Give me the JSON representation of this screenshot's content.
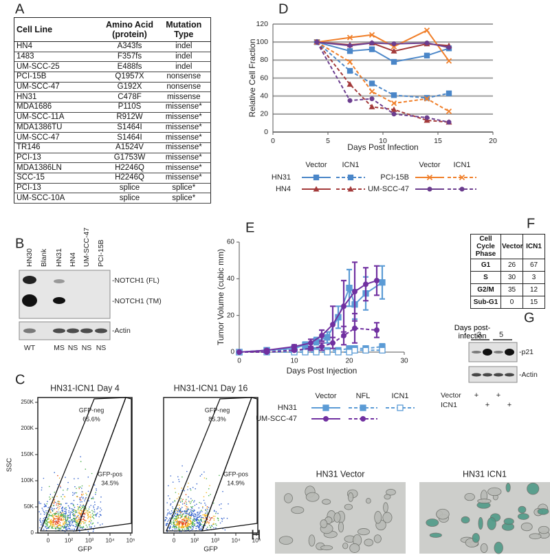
{
  "panels": {
    "A": {
      "label": "A",
      "table": {
        "header": [
          "Cell Line",
          "Amino Acid\n(protein)",
          "Mutation\nType"
        ],
        "rows": [
          [
            "HN4",
            "A343fs",
            "indel"
          ],
          [
            "1483",
            "F357fs",
            "indel"
          ],
          [
            "UM-SCC-25",
            "E488fs",
            "indel"
          ],
          [
            "PCI-15B",
            "Q1957X",
            "nonsense"
          ],
          [
            "UM-SCC-47",
            "G192X",
            "nonsense"
          ],
          [
            "HN31",
            "C478F",
            "missense"
          ],
          [
            "MDA1686",
            "P110S",
            "missense*"
          ],
          [
            "UM-SCC-11A",
            "R912W",
            "missense*"
          ],
          [
            "MDA1386TU",
            "S1464I",
            "missense*"
          ],
          [
            "UM-SCC-47",
            "S1464I",
            "missense*"
          ],
          [
            "TR146",
            "A1524V",
            "missense*"
          ],
          [
            "PCI-13",
            "G1753W",
            "missense*"
          ],
          [
            "MDA1386LN",
            "H2246Q",
            "missense*"
          ],
          [
            "SCC-15",
            "H2246Q",
            "missense*"
          ],
          [
            "PCI-13",
            "splice",
            "splice*"
          ],
          [
            "UM-SCC-10A",
            "splice",
            "splice*"
          ]
        ]
      }
    },
    "B": {
      "label": "B",
      "lanes": [
        "HN30",
        "Blank",
        "HN31",
        "HN4",
        "UM-SCC-47",
        "PCI-15B"
      ],
      "bands": [
        "-NOTCH1 (FL)",
        "-NOTCH1 (TM)",
        "-Actin"
      ],
      "status": [
        "WT",
        null,
        "MS",
        "NS",
        "NS",
        "NS"
      ]
    },
    "C": {
      "label": "C",
      "plots": [
        {
          "title": "HN31-ICN1 Day 4",
          "ylabel": "SSC",
          "xlabel": "GFP",
          "yticks": [
            0,
            {
              "value": 50000,
              "label": "50K"
            },
            {
              "value": 100000,
              "label": "100K"
            },
            {
              "value": 150000,
              "label": "150K"
            },
            {
              "value": 200000,
              "label": "200K"
            },
            {
              "value": 250000,
              "label": "250K"
            }
          ],
          "xticks": [
            0,
            {
              "value": 100,
              "label": "10²"
            },
            {
              "value": 1000,
              "label": "10³"
            },
            {
              "value": 10000,
              "label": "10⁴"
            },
            {
              "value": 100000,
              "label": "10⁵"
            }
          ],
          "neg_label": "GFP-neg",
          "neg_pct": "65.6%",
          "pos_label": "GFP-pos",
          "pos_pct": "34.5%"
        },
        {
          "title": "HN31-ICN1 Day 16",
          "xlabel": "GFP",
          "xticks": [
            0,
            {
              "value": 100,
              "label": "10²"
            },
            {
              "value": 1000,
              "label": "10³"
            },
            {
              "value": 10000,
              "label": "10⁴"
            },
            {
              "value": 100000,
              "label": "10⁵"
            }
          ],
          "neg_label": "GFP-neg",
          "neg_pct": "85.3%",
          "pos_label": "GFP-pos",
          "pos_pct": "14.9%"
        }
      ]
    },
    "D": {
      "label": "D"
    },
    "E": {
      "label": "E"
    },
    "F": {
      "label": "F",
      "table": {
        "header": [
          "Cell Cycle\nPhase",
          "Vector",
          "ICN1"
        ],
        "rows": [
          [
            "G1",
            "26",
            "67"
          ],
          [
            "S",
            "30",
            "3"
          ],
          [
            "G2/M",
            "35",
            "12"
          ],
          [
            "Sub-G1",
            "0",
            "15"
          ]
        ]
      }
    },
    "G": {
      "label": "G",
      "days_title": "Days post-\ninfection",
      "days": [
        "3",
        "5"
      ],
      "bands": [
        "-p21",
        "-Actin"
      ],
      "rows": [
        {
          "name": "Vector",
          "signs": [
            "+",
            null,
            "+",
            null
          ]
        },
        {
          "name": "ICN1",
          "signs": [
            null,
            "+",
            null,
            "+"
          ]
        }
      ]
    },
    "H": {
      "label": "H",
      "images": [
        "HN31 Vector",
        "HN31 ICN1"
      ]
    }
  },
  "chart_data": [
    {
      "type": "line",
      "ylabel": "Relative Cell Fraction",
      "xlabel": "Days Post Infection",
      "x": [
        4,
        7,
        9,
        11,
        14,
        16
      ],
      "xlim": [
        0,
        20
      ],
      "xticks": [
        0,
        5,
        10,
        15,
        20
      ],
      "ylim": [
        0,
        120
      ],
      "yticks": [
        0,
        20,
        40,
        60,
        80,
        100,
        120
      ],
      "grid": true,
      "legend": {
        "groups": [
          {
            "headers": [
              "Vector",
              "ICN1"
            ],
            "rows": [
              "HN31",
              "HN4"
            ]
          },
          {
            "headers": [
              "Vector",
              "ICN1"
            ],
            "rows": [
              "PCI-15B",
              "UM-SCC-47"
            ]
          }
        ]
      },
      "series": [
        {
          "color": "#4a86c8",
          "marker": "square",
          "dashed": false,
          "values": [
            100,
            90,
            92,
            78,
            85,
            93
          ]
        },
        {
          "color": "#4a86c8",
          "marker": "square",
          "dashed": true,
          "values": [
            100,
            68,
            54,
            41,
            38,
            43
          ]
        },
        {
          "color": "#a33a3a",
          "marker": "triangle",
          "dashed": false,
          "values": [
            100,
            97,
            99,
            90,
            98,
            96
          ]
        },
        {
          "color": "#a33a3a",
          "marker": "triangle",
          "dashed": true,
          "values": [
            100,
            53,
            28,
            25,
            13,
            11
          ]
        },
        {
          "color": "#f07f2a",
          "marker": "x",
          "dashed": false,
          "values": [
            100,
            105,
            108,
            95,
            113,
            79
          ]
        },
        {
          "color": "#f07f2a",
          "marker": "x",
          "dashed": true,
          "values": [
            100,
            78,
            45,
            32,
            37,
            23
          ]
        },
        {
          "color": "#6b3d8e",
          "marker": "circle",
          "dashed": false,
          "values": [
            100,
            96,
            99,
            98,
            99,
            94
          ]
        },
        {
          "color": "#6b3d8e",
          "marker": "circle",
          "dashed": true,
          "values": [
            100,
            35,
            37,
            20,
            16,
            11
          ]
        }
      ]
    },
    {
      "type": "line",
      "ylabel": "Tumor Volume (cubic mm)",
      "xlabel": "Days Post Injection",
      "xlim": [
        0,
        30
      ],
      "xticks": [
        0,
        10,
        20,
        30
      ],
      "ylim": [
        0,
        60
      ],
      "yticks": [
        0,
        20,
        40,
        60
      ],
      "grid": false,
      "legend": {
        "groups": [
          {
            "headers": [
              "Vector",
              "NFL",
              "ICN1"
            ],
            "rows": [
              "HN31",
              "UM-SCC-47"
            ]
          }
        ]
      },
      "series": [
        {
          "color": "#5b9bd5",
          "marker": "square",
          "dashed": false,
          "x": [
            0,
            5,
            10,
            12,
            14,
            16,
            18,
            20,
            21,
            23,
            26
          ],
          "values": [
            0,
            1,
            2,
            4,
            6,
            8,
            19,
            35,
            26,
            32,
            38
          ],
          "errors": [
            0,
            0.5,
            1,
            1.5,
            2,
            3,
            6,
            10,
            8,
            9,
            9
          ]
        },
        {
          "color": "#5b9bd5",
          "marker": "square",
          "dashed": true,
          "x": [
            0,
            5,
            10,
            12,
            14,
            16,
            18,
            20,
            21,
            23,
            26
          ],
          "values": [
            0,
            1,
            1,
            1,
            1,
            1,
            1,
            2,
            2,
            2,
            3
          ],
          "errors": [
            0,
            0.3,
            0.5,
            0.5,
            0.5,
            0.5,
            0.8,
            1,
            1,
            1,
            1.5
          ]
        },
        {
          "color": "#5b9bd5",
          "marker": "square-open",
          "dashed": true,
          "x": [
            0,
            5,
            10,
            12,
            14,
            16,
            18,
            20,
            21,
            23,
            26
          ],
          "values": [
            0,
            0,
            0,
            0,
            0,
            0,
            0,
            0,
            1,
            1,
            1
          ],
          "errors": [
            0,
            0.2,
            0.2,
            0.2,
            0.3,
            0.3,
            0.3,
            0.5,
            0.5,
            0.5,
            0.5
          ]
        },
        {
          "color": "#7030a0",
          "marker": "circle",
          "dashed": false,
          "x": [
            0,
            5,
            10,
            13,
            15,
            17,
            19,
            21,
            23,
            25
          ],
          "values": [
            0,
            1,
            3,
            5,
            9,
            15,
            25,
            33,
            37,
            39
          ],
          "errors": [
            0,
            0.5,
            1,
            2,
            3,
            10,
            14,
            16,
            9,
            8
          ]
        },
        {
          "color": "#7030a0",
          "marker": "circle",
          "dashed": true,
          "x": [
            0,
            5,
            10,
            13,
            15,
            17,
            19,
            21,
            25
          ],
          "values": [
            0,
            0,
            1,
            2,
            3,
            5,
            9,
            13,
            12
          ],
          "errors": [
            0,
            0.2,
            0.5,
            1,
            2,
            3,
            5,
            8,
            4
          ]
        }
      ]
    }
  ]
}
